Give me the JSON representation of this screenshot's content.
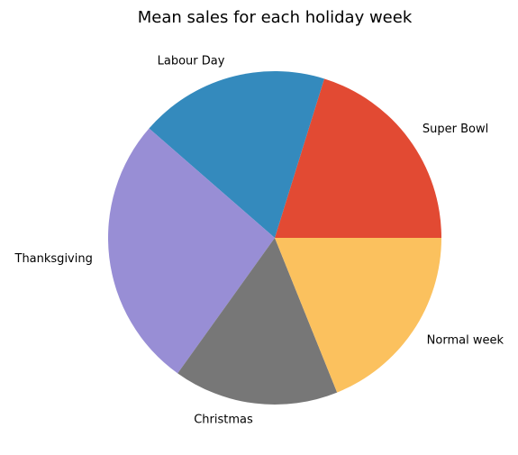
{
  "chart_data": {
    "type": "pie",
    "title": "Mean sales for each holiday week",
    "categories": [
      "Super Bowl",
      "Labour Day",
      "Thanksgiving",
      "Christmas",
      "Normal week"
    ],
    "values": [
      20.2,
      18.4,
      26.5,
      16.0,
      18.9
    ],
    "unit": "percent",
    "colors": [
      "#E24A33",
      "#348ABD",
      "#988ED5",
      "#777777",
      "#FBC15E"
    ],
    "start_angle_degrees": 0,
    "direction": "counterclockwise",
    "legend": "none"
  }
}
